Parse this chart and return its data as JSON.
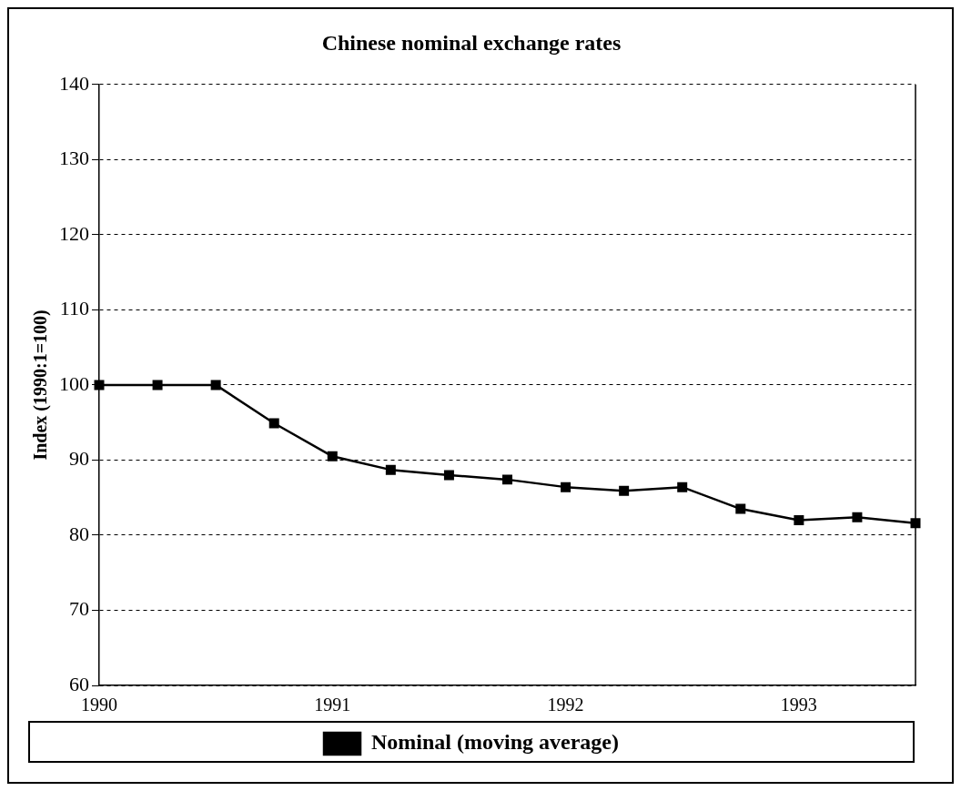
{
  "chart_data": {
    "type": "line",
    "title": "Chinese nominal exchange rates",
    "ylabel": "Index (1990:1=100)",
    "categories": [
      "1990",
      null,
      null,
      null,
      "1991",
      null,
      null,
      null,
      "1992",
      null,
      null,
      null,
      "1993",
      null,
      null
    ],
    "series": [
      {
        "name": "Nominal (moving average)",
        "color": "#000000",
        "values": [
          100,
          100,
          100,
          94.9,
          90.5,
          88.7,
          88,
          87.4,
          86.4,
          85.9,
          86.4,
          83.5,
          82,
          82.4,
          81.6
        ]
      }
    ],
    "ylim": [
      60,
      140
    ],
    "yticks": [
      60,
      70,
      80,
      90,
      100,
      110,
      120,
      130,
      140
    ],
    "grid": "y",
    "legend": "bottom",
    "marker": "square",
    "line_style": "solid"
  }
}
